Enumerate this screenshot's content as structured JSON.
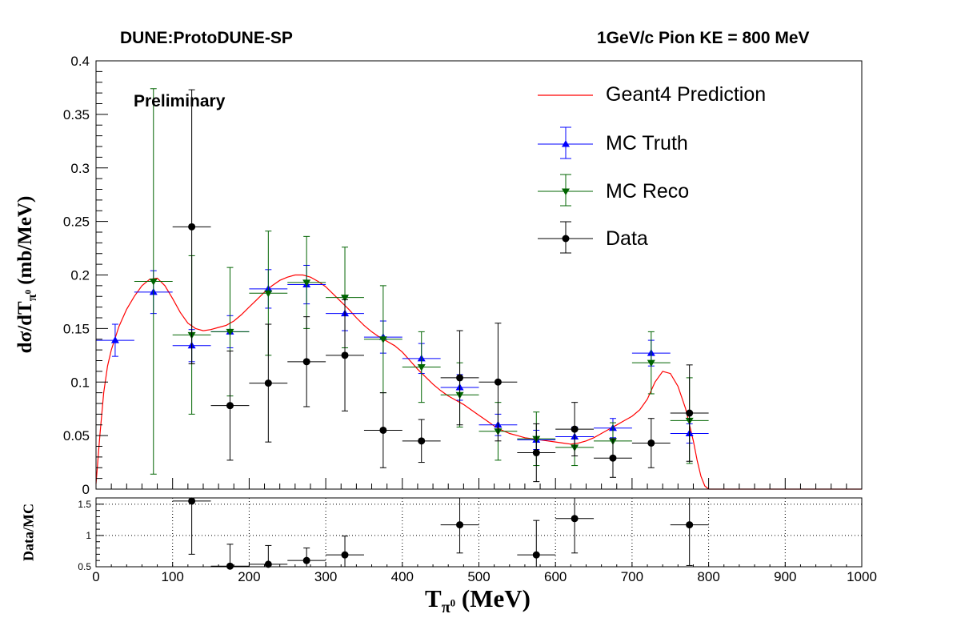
{
  "header": {
    "left": "DUNE:ProtoDUNE-SP",
    "right": "1GeV/c Pion KE = 800 MeV",
    "preliminary": "Preliminary"
  },
  "legend": {
    "geant4": "Geant4 Prediction",
    "truth": "MC Truth",
    "reco": "MC Reco",
    "data": "Data"
  },
  "axes": {
    "ylabel": "dσ/dT",
    "ylabel_sub": "π",
    "ylabel_sup": "0",
    "ylabel_unit": " (mb/MeV)",
    "ratio_label": "Data/MC",
    "xlabel": "T",
    "xlabel_sub": "π",
    "xlabel_sup": "0",
    "xlabel_unit": " (MeV)"
  },
  "chart_data": {
    "type": "scatter",
    "xlim": [
      0,
      1000
    ],
    "ylim": [
      0,
      0.4
    ],
    "xticks": [
      0,
      100,
      200,
      300,
      400,
      500,
      600,
      700,
      800,
      900,
      1000
    ],
    "xtick_labels": [
      "0",
      "100",
      "200",
      "300",
      "400",
      "500",
      "600",
      "700",
      "800",
      "900",
      "1000"
    ],
    "yticks": [
      0,
      0.05,
      0.1,
      0.15,
      0.2,
      0.25,
      0.3,
      0.35,
      0.4
    ],
    "ytick_labels": [
      "0",
      "0.05",
      "0.1",
      "0.15",
      "0.2",
      "0.25",
      "0.3",
      "0.35",
      "0.4"
    ],
    "bin_halfwidth": 25,
    "series": [
      {
        "name": "MC Truth",
        "color": "#0000ff",
        "marker": "triangle-up",
        "x": [
          25,
          75,
          125,
          175,
          225,
          275,
          325,
          375,
          425,
          475,
          525,
          575,
          625,
          675,
          725,
          775
        ],
        "y": [
          0.139,
          0.184,
          0.134,
          0.147,
          0.187,
          0.191,
          0.164,
          0.142,
          0.122,
          0.095,
          0.06,
          0.046,
          0.049,
          0.057,
          0.127,
          0.052
        ],
        "err": [
          0.015,
          0.02,
          0.015,
          0.015,
          0.018,
          0.018,
          0.016,
          0.015,
          0.014,
          0.012,
          0.01,
          0.009,
          0.009,
          0.009,
          0.012,
          0.009
        ]
      },
      {
        "name": "MC Reco",
        "color": "#006400",
        "marker": "triangle-down",
        "x": [
          75,
          125,
          175,
          225,
          275,
          325,
          375,
          425,
          475,
          525,
          575,
          625,
          675,
          725,
          775
        ],
        "y": [
          0.194,
          0.144,
          0.147,
          0.183,
          0.193,
          0.179,
          0.14,
          0.114,
          0.088,
          0.054,
          0.047,
          0.039,
          0.045,
          0.118,
          0.064
        ],
        "err": [
          0.18,
          0.074,
          0.06,
          0.058,
          0.043,
          0.047,
          0.05,
          0.033,
          0.03,
          0.027,
          0.025,
          0.017,
          0.017,
          0.029,
          0.04
        ]
      },
      {
        "name": "Data",
        "color": "#000000",
        "marker": "circle",
        "x": [
          125,
          175,
          225,
          275,
          325,
          375,
          425,
          475,
          525,
          575,
          625,
          675,
          725,
          775
        ],
        "y": [
          0.245,
          0.078,
          0.099,
          0.119,
          0.125,
          0.055,
          0.045,
          0.104,
          0.1,
          0.034,
          0.056,
          0.029,
          0.043,
          0.071
        ],
        "err": [
          0.128,
          0.051,
          0.055,
          0.042,
          0.052,
          0.035,
          0.02,
          0.044,
          0.055,
          0.027,
          0.025,
          0.018,
          0.023,
          0.045
        ]
      }
    ],
    "prediction": {
      "name": "Geant4 Prediction",
      "color": "#ff0000",
      "x": [
        0,
        5,
        10,
        15,
        20,
        30,
        40,
        50,
        60,
        70,
        80,
        90,
        100,
        110,
        120,
        130,
        140,
        150,
        160,
        170,
        180,
        190,
        200,
        210,
        220,
        230,
        240,
        250,
        260,
        270,
        280,
        290,
        300,
        310,
        320,
        330,
        340,
        350,
        360,
        370,
        380,
        390,
        400,
        410,
        420,
        430,
        440,
        450,
        460,
        470,
        480,
        490,
        500,
        510,
        520,
        530,
        540,
        550,
        560,
        570,
        580,
        590,
        600,
        610,
        620,
        630,
        640,
        650,
        660,
        670,
        680,
        690,
        700,
        710,
        720,
        730,
        740,
        750,
        760,
        770,
        780,
        785,
        790,
        795,
        800,
        1000
      ],
      "y": [
        0.005,
        0.05,
        0.09,
        0.115,
        0.13,
        0.152,
        0.168,
        0.18,
        0.19,
        0.196,
        0.197,
        0.19,
        0.178,
        0.165,
        0.155,
        0.15,
        0.148,
        0.149,
        0.151,
        0.153,
        0.157,
        0.163,
        0.17,
        0.177,
        0.184,
        0.19,
        0.195,
        0.198,
        0.2,
        0.2,
        0.198,
        0.194,
        0.189,
        0.182,
        0.175,
        0.168,
        0.16,
        0.153,
        0.147,
        0.142,
        0.138,
        0.134,
        0.128,
        0.12,
        0.112,
        0.105,
        0.098,
        0.092,
        0.087,
        0.083,
        0.079,
        0.074,
        0.069,
        0.064,
        0.059,
        0.055,
        0.052,
        0.05,
        0.048,
        0.047,
        0.046,
        0.045,
        0.044,
        0.043,
        0.042,
        0.043,
        0.045,
        0.048,
        0.052,
        0.056,
        0.06,
        0.064,
        0.068,
        0.074,
        0.084,
        0.1,
        0.11,
        0.108,
        0.096,
        0.075,
        0.045,
        0.027,
        0.012,
        0.003,
        0,
        0
      ]
    },
    "ratio": {
      "ylim": [
        0.5,
        1.6
      ],
      "yticks": [
        0.5,
        1,
        1.5
      ],
      "ytick_labels": [
        "0.5",
        "1",
        "1.5"
      ],
      "grid": true,
      "x": [
        125,
        175,
        225,
        275,
        325,
        475,
        575,
        625,
        775
      ],
      "y": [
        1.55,
        0.51,
        0.54,
        0.6,
        0.69,
        1.17,
        0.69,
        1.27,
        1.17
      ],
      "err": [
        0.85,
        0.35,
        0.3,
        0.2,
        0.3,
        0.45,
        0.55,
        0.55,
        0.65
      ]
    }
  }
}
